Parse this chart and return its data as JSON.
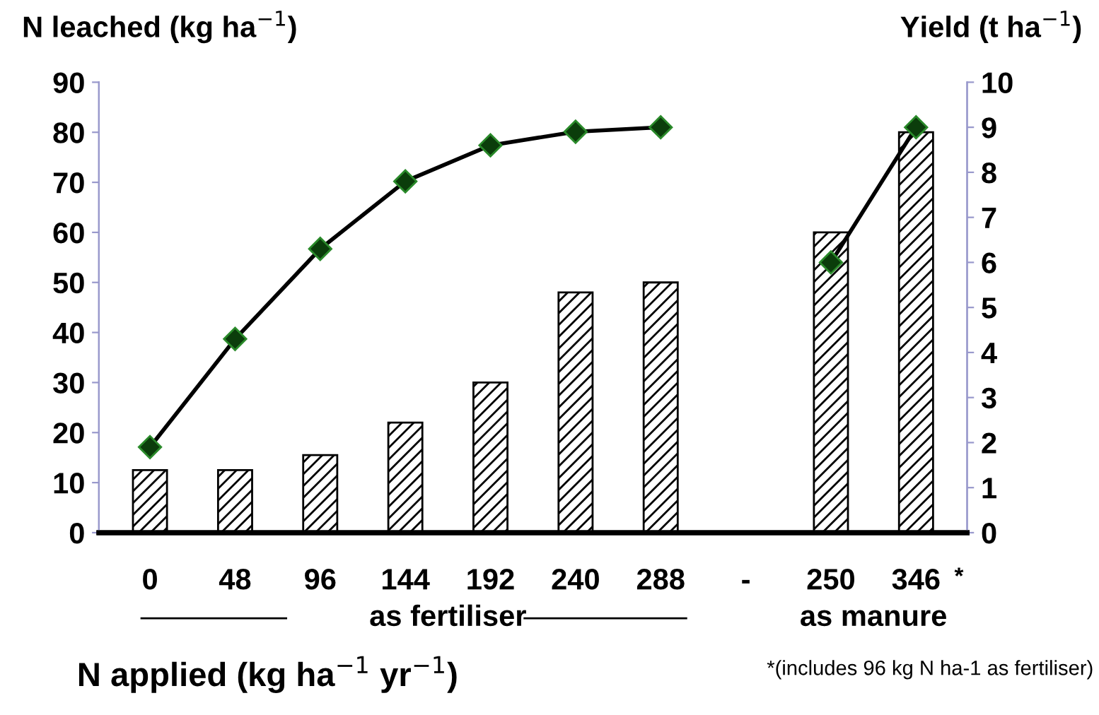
{
  "chart_data": {
    "type": "bar",
    "ylabel": "N leached (kg ha$^{−1}$)",
    "y2label": "Yield (t ha$^{−1}$)",
    "xlabel": "N applied (kg ha$^{−1}$ yr$^{−1}$)",
    "categories": [
      "0",
      "48",
      "96",
      "144",
      "192",
      "240",
      "288",
      "-",
      "250",
      "346"
    ],
    "series": [
      {
        "color": "#000000",
        "values": [
          12.5,
          12.5,
          15.5,
          22,
          30,
          48,
          50,
          null,
          60,
          80
        ]
      },
      {
        "type": "line",
        "axis": "y2",
        "color": "#000000",
        "marker": "diamond",
        "values": [
          1.9,
          4.3,
          6.3,
          7.8,
          8.6,
          8.9,
          9.0,
          null,
          6.0,
          9.0
        ]
      }
    ],
    "ylim": [
      0,
      90
    ],
    "yticks": [
      0,
      10,
      20,
      30,
      40,
      50,
      60,
      70,
      80,
      90
    ],
    "y2lim": [
      0,
      10
    ],
    "y2ticks": [
      0,
      1,
      2,
      3,
      4,
      5,
      6,
      7,
      8,
      9,
      10
    ],
    "annotations": [
      "*",
      "as fertiliser",
      "as manure",
      "*(includes 96 kg N ha-1 as fertiliser)"
    ]
  }
}
